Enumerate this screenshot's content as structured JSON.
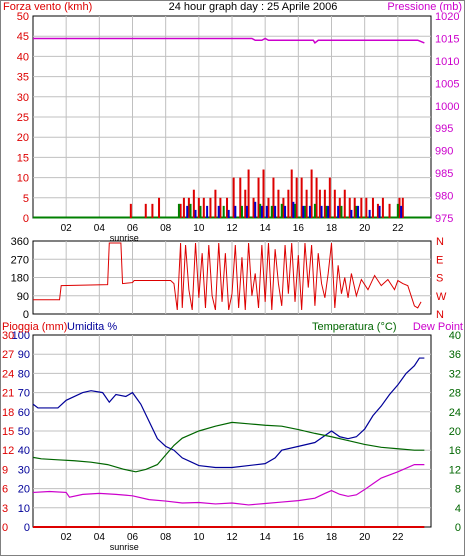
{
  "header": {
    "title": "24 hour graph day : 25 Aprile 2006",
    "left_label": "Forza vento (kmh)",
    "right_label": "Pressione (mb)"
  },
  "colors": {
    "wind_gust": "#dd0000",
    "wind_avg": "#0000cc",
    "wind_green": "#008000",
    "pressure": "#cc00cc",
    "direction": "#dd0000",
    "humidity": "#000099",
    "temperature": "#006600",
    "dewpoint": "#cc00cc",
    "rain": "#dd0000",
    "grid": "#c0c0c0",
    "frame": "#000000"
  },
  "x_axis": {
    "ticks": [
      "02",
      "04",
      "06",
      "08",
      "10",
      "12",
      "14",
      "16",
      "18",
      "20",
      "22"
    ],
    "sunrise_label": "sunrise"
  },
  "chart_data": [
    {
      "type": "bar",
      "title": "24 hour graph day : 25 Aprile 2006",
      "ylabel": "Forza vento (kmh)",
      "y2label": "Pressione (mb)",
      "ylim": [
        0,
        50
      ],
      "yticks": [
        "0",
        "5",
        "10",
        "15",
        "20",
        "25",
        "30",
        "35",
        "40",
        "45",
        "50"
      ],
      "y2lim": [
        975,
        1020
      ],
      "y2ticks": [
        "975",
        "980",
        "985",
        "990",
        "995",
        "1000",
        "1005",
        "1010",
        "1015",
        "1020"
      ],
      "xlim": [
        0,
        24
      ],
      "series": [
        {
          "name": "Forza vento (kmh)",
          "kind": "gust_bars",
          "x": [
            5.9,
            6.8,
            7.2,
            7.6,
            8.9,
            9.1,
            9.4,
            9.7,
            10.0,
            10.3,
            10.7,
            11.0,
            11.3,
            11.7,
            12.1,
            12.5,
            12.8,
            13.0,
            13.3,
            13.6,
            13.9,
            14.2,
            14.5,
            14.8,
            15.1,
            15.4,
            15.6,
            15.9,
            16.2,
            16.5,
            16.8,
            17.1,
            17.3,
            17.6,
            17.9,
            18.2,
            18.5,
            18.8,
            19.1,
            19.4,
            19.8,
            20.1,
            20.5,
            20.8,
            21.1,
            21.5,
            22.1,
            22.3
          ],
          "values": [
            3.5,
            3.5,
            3.5,
            5,
            3.5,
            5,
            5,
            7,
            5,
            5,
            5,
            7,
            5,
            5,
            10,
            10,
            7,
            12,
            5,
            10,
            12,
            5,
            10,
            7,
            5,
            7,
            12,
            10,
            10,
            7,
            12,
            10,
            7,
            7,
            10,
            7,
            5,
            7,
            5,
            5,
            5,
            5,
            5,
            3.5,
            5,
            3.5,
            5,
            5
          ]
        },
        {
          "name": "",
          "kind": "avg_bars",
          "x": [
            9.3,
            9.8,
            10.5,
            11.2,
            11.8,
            12.2,
            12.9,
            13.4,
            13.8,
            14.1,
            14.6,
            15.2,
            15.7,
            16.3,
            16.7,
            17.4,
            17.8,
            18.4,
            19.2,
            19.6,
            20.3,
            20.9,
            22.2
          ],
          "values": [
            3,
            2,
            3,
            3,
            2,
            3,
            3,
            4,
            3,
            3,
            3,
            3,
            4,
            3,
            3,
            3,
            3,
            3,
            2,
            3,
            2,
            3,
            3
          ]
        },
        {
          "name": "",
          "kind": "green_bars",
          "x": [
            8.8,
            9.5,
            10.1,
            11.5,
            12.6,
            13.7,
            14.4,
            15.0,
            15.8,
            16.4,
            17.0,
            17.7,
            18.6,
            19.5,
            22.0
          ],
          "values": [
            3.5,
            3.5,
            3,
            3,
            3,
            3.5,
            3,
            3.5,
            3.5,
            3,
            3.5,
            3,
            3,
            3,
            3.5
          ]
        },
        {
          "name": "Pressione (mb)",
          "kind": "line",
          "axis": "right",
          "x": [
            0,
            5,
            10,
            13.2,
            13.4,
            13.8,
            14.0,
            14.2,
            15,
            16.9,
            17.0,
            17.2,
            18,
            20,
            23.2,
            23.6
          ],
          "values": [
            1015,
            1015,
            1015,
            1015,
            1014.6,
            1014.6,
            1015,
            1014.6,
            1014.6,
            1014.6,
            1014,
            1014.6,
            1014.6,
            1014.6,
            1014.6,
            1014
          ]
        }
      ]
    },
    {
      "type": "line",
      "ylim": [
        0,
        360
      ],
      "yticks": [
        "0",
        "90",
        "180",
        "270",
        "360"
      ],
      "y2ticks": [
        "N",
        "W",
        "S",
        "E",
        "N"
      ],
      "xlim": [
        0,
        24
      ],
      "series": [
        {
          "name": "",
          "x": [
            0,
            1.6,
            1.7,
            4.5,
            4.6,
            5.3,
            5.4,
            6.0,
            6.1,
            8.3,
            8.5,
            8.7,
            8.9,
            9.0,
            9.2,
            9.4,
            9.6,
            9.8,
            10.0,
            10.2,
            10.4,
            10.6,
            10.8,
            11.0,
            11.2,
            11.4,
            11.6,
            11.8,
            12.0,
            12.2,
            12.4,
            12.6,
            12.8,
            13.0,
            13.2,
            13.4,
            13.6,
            13.8,
            14.0,
            14.2,
            14.4,
            14.6,
            14.8,
            15.0,
            15.2,
            15.4,
            15.6,
            15.8,
            16.0,
            16.2,
            16.4,
            16.6,
            16.8,
            17.0,
            17.2,
            17.4,
            17.6,
            17.8,
            18.0,
            18.2,
            18.4,
            18.6,
            18.8,
            19.0,
            19.2,
            19.5,
            19.8,
            20.2,
            20.6,
            21.0,
            21.4,
            21.8,
            22.0,
            22.3,
            22.6,
            23.0,
            23.2,
            23.4
          ],
          "values": [
            70,
            70,
            140,
            145,
            350,
            350,
            150,
            155,
            165,
            165,
            150,
            20,
            350,
            30,
            340,
            120,
            20,
            350,
            80,
            300,
            30,
            340,
            90,
            20,
            350,
            60,
            300,
            20,
            100,
            340,
            30,
            280,
            20,
            350,
            90,
            200,
            30,
            340,
            60,
            350,
            20,
            320,
            150,
            40,
            340,
            100,
            350,
            60,
            290,
            20,
            350,
            130,
            340,
            40,
            300,
            150,
            80,
            200,
            350,
            30,
            240,
            100,
            180,
            80,
            200,
            90,
            170,
            120,
            190,
            140,
            170,
            120,
            165,
            150,
            140,
            40,
            30,
            60
          ]
        }
      ]
    },
    {
      "type": "line",
      "ylabel": "Pioggia (mm)  Umidita %",
      "y2label": "Temperatura (°C)Dew Point",
      "ylim": [
        0,
        100
      ],
      "yticks_humidity": [
        "0",
        "10",
        "20",
        "30",
        "40",
        "50",
        "60",
        "70",
        "80",
        "90",
        "100"
      ],
      "yticks_rain": [
        "0",
        "3",
        "6",
        "9",
        "12",
        "15",
        "18",
        "21",
        "24",
        "27",
        "30"
      ],
      "y2lim": [
        0,
        40
      ],
      "y2ticks": [
        "0",
        "4",
        "8",
        "12",
        "16",
        "20",
        "24",
        "28",
        "32",
        "36",
        "40"
      ],
      "xlim": [
        0,
        24
      ],
      "series": [
        {
          "name": "Umidita %",
          "color_key": "humidity",
          "axis": "humidity",
          "x": [
            0,
            0.3,
            1.5,
            2.0,
            3.0,
            3.5,
            4.2,
            4.6,
            5.0,
            5.6,
            6.0,
            6.5,
            7.0,
            7.5,
            8.0,
            8.5,
            9.0,
            9.5,
            10.0,
            11.0,
            12.0,
            13.0,
            14.0,
            14.6,
            15.0,
            16.0,
            17.0,
            17.5,
            18.0,
            18.5,
            19.0,
            19.5,
            20.0,
            20.5,
            21.0,
            21.5,
            22.0,
            22.5,
            23.0,
            23.3,
            23.6
          ],
          "values": [
            64,
            62,
            62,
            66,
            70,
            71,
            70,
            65,
            69,
            68,
            70,
            64,
            55,
            46,
            42,
            40,
            36,
            34,
            32,
            31,
            31,
            32,
            33,
            36,
            40,
            42,
            44,
            47,
            50,
            47,
            46,
            47,
            51,
            58,
            63,
            69,
            74,
            80,
            84,
            88,
            88
          ]
        },
        {
          "name": "Temperatura (°C)",
          "color_key": "temperature",
          "axis": "temperature",
          "x": [
            0,
            0.5,
            1.5,
            2.5,
            3.5,
            4.5,
            5.5,
            6.2,
            6.8,
            7.5,
            8.0,
            8.5,
            9.0,
            10.0,
            11.0,
            12.0,
            13.0,
            14.0,
            15.0,
            16.0,
            17.0,
            18.0,
            19.0,
            20.0,
            21.0,
            22.0,
            23.0,
            23.6
          ],
          "values": [
            14.5,
            14.2,
            14,
            13.8,
            13.5,
            13,
            12,
            11.5,
            12,
            13,
            15,
            17,
            18.5,
            20,
            21,
            21.8,
            21.5,
            21.2,
            21,
            20.3,
            19.5,
            18.8,
            18,
            17.2,
            16.6,
            16.3,
            16,
            16
          ]
        },
        {
          "name": "Dew Point",
          "color_key": "dewpoint",
          "axis": "temperature",
          "x": [
            0,
            1.0,
            2.0,
            2.2,
            3.0,
            4.0,
            5.0,
            6.0,
            7.0,
            8.0,
            9.0,
            10.0,
            11.0,
            12.0,
            13.0,
            14.0,
            15.0,
            16.0,
            17.0,
            17.6,
            18.0,
            18.5,
            19.0,
            19.5,
            20.0,
            20.5,
            21.0,
            22.0,
            23.0,
            23.6
          ],
          "values": [
            7.2,
            7.4,
            7.2,
            6.2,
            6.8,
            7.0,
            6.8,
            6.5,
            5.7,
            5.4,
            5.0,
            5.1,
            4.8,
            5.0,
            4.6,
            4.9,
            5.2,
            5.5,
            6.0,
            7.0,
            7.6,
            6.8,
            6.4,
            6.7,
            7.8,
            9.0,
            10.2,
            11.5,
            13.0,
            13.0
          ]
        },
        {
          "name": "Pioggia (mm)",
          "color_key": "rain",
          "axis": "rain",
          "x": [
            0,
            23.6
          ],
          "values": [
            0,
            0
          ]
        }
      ]
    }
  ]
}
